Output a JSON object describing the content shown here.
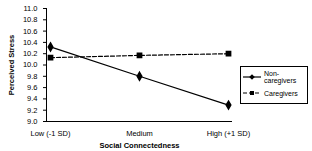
{
  "chart_data": {
    "type": "line",
    "x_label": "Social Connectedness",
    "y_label": "Perceived Stress",
    "categories": [
      "Low (-1 SD)",
      "Medium",
      "High (+1 SD)"
    ],
    "series": [
      {
        "name": "Non-caregivers",
        "color": "#000000",
        "marker": "diamond",
        "line_style": "solid",
        "values": [
          10.32,
          9.8,
          9.29
        ]
      },
      {
        "name": "Caregivers",
        "color": "#000000",
        "marker": "square",
        "line_style": "dashed",
        "values": [
          10.13,
          10.17,
          10.2
        ]
      }
    ],
    "ylim": [
      9,
      11
    ],
    "yticks": [
      9,
      9.2,
      9.4,
      9.6,
      9.8,
      10,
      10.2,
      10.4,
      10.6,
      10.8,
      11
    ],
    "grid": false,
    "legend": "right"
  }
}
